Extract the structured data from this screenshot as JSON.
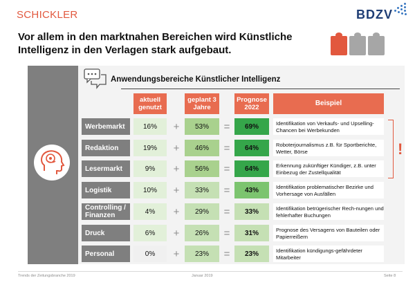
{
  "brand": {
    "left": "SCHICKLER",
    "right": "BDZV"
  },
  "headline": "Vor allem in den marktnahen Bereichen wird Künstliche Intelligenz in den Verlagen stark aufgebaut.",
  "table": {
    "title": "Anwendungsbereiche Künstlicher Intelligenz",
    "headers": {
      "current": "aktuell genutzt",
      "planned": "geplant 3 Jahre",
      "forecast": "Prognose 2022",
      "example": "Beispiel"
    },
    "rows": [
      {
        "category": "Werbemarkt",
        "current": "16%",
        "planned": "53%",
        "forecast": "69%",
        "example": "Identifikation von Verkaufs- und Upselling-Chancen bei Werbekunden"
      },
      {
        "category": "Redaktion",
        "current": "19%",
        "planned": "46%",
        "forecast": "64%",
        "example": "Roboterjournalismus z.B. für Sportberichte, Wetter, Börse"
      },
      {
        "category": "Lesermarkt",
        "current": "9%",
        "planned": "56%",
        "forecast": "64%",
        "example": "Erkennung zukünftiger Kündiger, z.B. unter Einbezug der Zustellqualität"
      },
      {
        "category": "Logistik",
        "current": "10%",
        "planned": "33%",
        "forecast": "43%",
        "example": "Identifikation problematischer Bezirke und Vorhersage von Ausfällen"
      },
      {
        "category": "Controlling / Finanzen",
        "current": "4%",
        "planned": "29%",
        "forecast": "33%",
        "example": "Identifikation betrügerischer Rech-nungen und fehlerhafter Buchungen"
      },
      {
        "category": "Druck",
        "current": "6%",
        "planned": "26%",
        "forecast": "31%",
        "example": "Prognose des Versagens von Bauteilen oder Papierreißern"
      },
      {
        "category": "Personal",
        "current": "0%",
        "planned": "23%",
        "forecast": "23%",
        "example": "Identifikation kündigungs-gefährdeter Mitarbeiter"
      }
    ],
    "operators": {
      "plus": "+",
      "equals": "="
    },
    "highlight_mark": "!"
  },
  "footer": {
    "left": "Trends der Zeitungsbranche 2019",
    "center": "Januar 2019",
    "right": "Seite 8"
  },
  "colors": {
    "accent": "#e2583e",
    "header_bg": "#e86c50",
    "category_bg": "#7f7f7f",
    "brand_blue": "#1f3e75"
  }
}
